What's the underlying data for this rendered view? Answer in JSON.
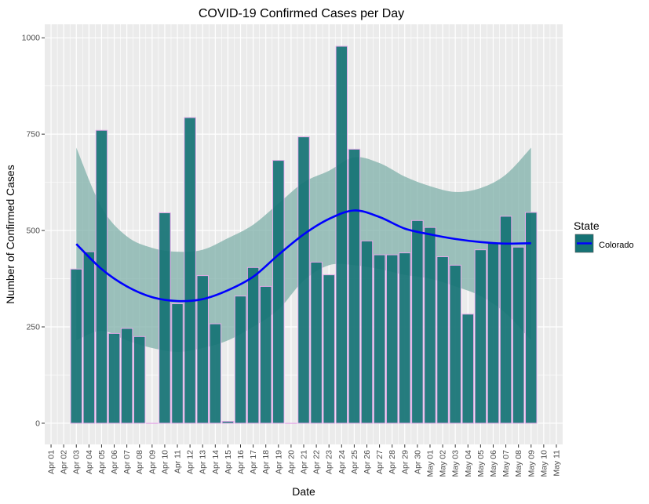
{
  "chart_data": {
    "type": "bar",
    "title": "COVID-19 Confirmed Cases per Day",
    "xlabel": "Date",
    "ylabel": "Number of Confirmed Cases",
    "x_ticks": [
      "Apr 01",
      "Apr 02",
      "Apr 03",
      "Apr 04",
      "Apr 05",
      "Apr 06",
      "Apr 07",
      "Apr 08",
      "Apr 09",
      "Apr 10",
      "Apr 11",
      "Apr 12",
      "Apr 13",
      "Apr 14",
      "Apr 15",
      "Apr 16",
      "Apr 17",
      "Apr 18",
      "Apr 19",
      "Apr 20",
      "Apr 21",
      "Apr 22",
      "Apr 23",
      "Apr 24",
      "Apr 25",
      "Apr 26",
      "Apr 27",
      "Apr 28",
      "Apr 29",
      "Apr 30",
      "May 01",
      "May 02",
      "May 03",
      "May 04",
      "May 05",
      "May 06",
      "May 07",
      "May 08",
      "May 09",
      "May 10",
      "May 11"
    ],
    "y_ticks": [
      0,
      250,
      500,
      750,
      1000
    ],
    "ylim": [
      -55,
      1035
    ],
    "xlim": [
      "Mar 31",
      "May 11"
    ],
    "grid": true,
    "legend": {
      "title": "State",
      "position": "right",
      "entries": [
        "Colorado"
      ]
    },
    "series": [
      {
        "name": "Colorado",
        "categories": [
          "Apr 03",
          "Apr 04",
          "Apr 05",
          "Apr 06",
          "Apr 07",
          "Apr 08",
          "Apr 09",
          "Apr 10",
          "Apr 11",
          "Apr 12",
          "Apr 13",
          "Apr 14",
          "Apr 15",
          "Apr 16",
          "Apr 17",
          "Apr 18",
          "Apr 19",
          "Apr 20",
          "Apr 21",
          "Apr 22",
          "Apr 23",
          "Apr 24",
          "Apr 25",
          "Apr 26",
          "Apr 27",
          "Apr 28",
          "Apr 29",
          "Apr 30",
          "May 01",
          "May 02",
          "May 03",
          "May 04",
          "May 05",
          "May 06",
          "May 07",
          "May 08",
          "May 09"
        ],
        "values": [
          400,
          445,
          760,
          233,
          246,
          225,
          0,
          546,
          310,
          793,
          383,
          258,
          5,
          330,
          404,
          355,
          682,
          0,
          743,
          418,
          385,
          978,
          711,
          473,
          437,
          437,
          442,
          526,
          508,
          432,
          410,
          283,
          450,
          467,
          537,
          457,
          547
        ]
      }
    ],
    "smooth": {
      "method": "loess",
      "x": [
        "Apr 03",
        "Apr 05",
        "Apr 07",
        "Apr 09",
        "Apr 11",
        "Apr 13",
        "Apr 15",
        "Apr 17",
        "Apr 19",
        "Apr 21",
        "Apr 23",
        "Apr 25",
        "Apr 27",
        "Apr 29",
        "May 01",
        "May 03",
        "May 05",
        "May 07",
        "May 09"
      ],
      "fit": [
        465,
        400,
        355,
        327,
        317,
        322,
        345,
        380,
        437,
        490,
        530,
        552,
        535,
        505,
        490,
        478,
        470,
        466,
        467
      ],
      "lower": [
        215,
        240,
        215,
        195,
        185,
        195,
        215,
        250,
        295,
        370,
        410,
        410,
        400,
        385,
        375,
        355,
        330,
        285,
        215
      ],
      "upper": [
        715,
        560,
        485,
        455,
        445,
        450,
        480,
        515,
        570,
        625,
        655,
        690,
        675,
        640,
        615,
        600,
        610,
        645,
        715
      ]
    },
    "colors": {
      "bar_fill": "#167375",
      "bar_outline": "#e4a9e8",
      "ribbon": "#7fb0aa",
      "smooth_line": "#0000ff",
      "panel_bg": "#ebebeb",
      "grid": "#ffffff"
    }
  }
}
